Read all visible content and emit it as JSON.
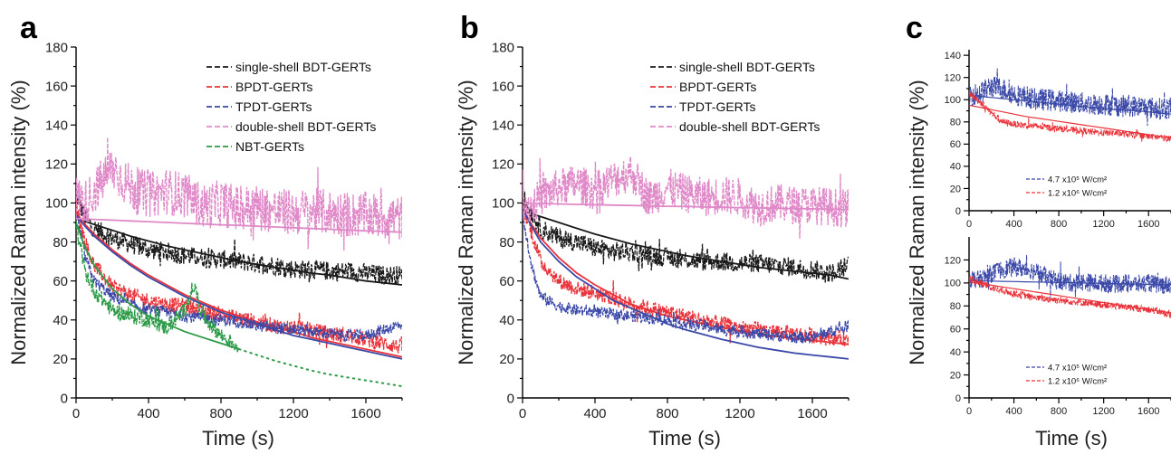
{
  "figure": {
    "ylabel_shared": "Normalized Raman intensity (%)",
    "xlabel_shared": "Time (s)"
  },
  "colors": {
    "black": "#1a1a1a",
    "red": "#e8333a",
    "blue": "#3a48a8",
    "pink": "#e089c8",
    "green": "#2a9a46"
  },
  "chart_data": [
    {
      "panel": "a",
      "type": "line",
      "xlabel": "Time (s)",
      "ylabel": "Normalized Raman intensity (%)",
      "xlim": [
        0,
        1800
      ],
      "ylim": [
        0,
        180
      ],
      "xticks": [
        0,
        400,
        800,
        1200,
        1600
      ],
      "yticks": [
        0,
        20,
        40,
        60,
        80,
        100,
        120,
        140,
        160,
        180
      ],
      "legend_position": "top-right",
      "series": [
        {
          "name": "single-shell BDT-GERTs",
          "color": "black",
          "noise": 5,
          "x": [
            0,
            50,
            100,
            200,
            300,
            400,
            500,
            600,
            700,
            800,
            900,
            1000,
            1100,
            1200,
            1300,
            1400,
            1500,
            1600,
            1700,
            1800
          ],
          "y": [
            105,
            92,
            87,
            82,
            79,
            76,
            75,
            73,
            72,
            71,
            70,
            69,
            68,
            66,
            66,
            65,
            65,
            64,
            63,
            63
          ],
          "fit": [
            92,
            90.5,
            89,
            86,
            83,
            80.5,
            78,
            76,
            74,
            72,
            70,
            68.5,
            67,
            65.5,
            64,
            63,
            61.5,
            60,
            59,
            58
          ]
        },
        {
          "name": "BPDT-GERTs",
          "color": "red",
          "noise": 4,
          "x": [
            0,
            50,
            100,
            200,
            300,
            400,
            500,
            600,
            700,
            800,
            900,
            1000,
            1100,
            1200,
            1300,
            1400,
            1500,
            1600,
            1700,
            1800
          ],
          "y": [
            100,
            80,
            68,
            57,
            53,
            50,
            48,
            47,
            45,
            43,
            41,
            39,
            37,
            36,
            35,
            33,
            32,
            30,
            28,
            26
          ],
          "fit": [
            95,
            89,
            84,
            76,
            69,
            63,
            58,
            53,
            49,
            45,
            42,
            39,
            36,
            34,
            31,
            29,
            27,
            25,
            23,
            21
          ]
        },
        {
          "name": "TPDT-GERTs",
          "color": "blue",
          "noise": 3,
          "x": [
            0,
            50,
            100,
            200,
            300,
            400,
            500,
            600,
            700,
            800,
            900,
            1000,
            1100,
            1200,
            1300,
            1400,
            1500,
            1600,
            1700,
            1800
          ],
          "y": [
            95,
            72,
            60,
            52,
            48,
            45,
            44,
            42,
            41,
            40,
            39,
            37,
            36,
            35,
            34,
            33,
            32,
            32,
            35,
            38
          ],
          "fit": [
            94,
            88,
            83,
            75,
            68,
            62,
            57,
            52,
            48,
            44,
            41,
            38,
            35,
            32,
            30,
            28,
            26,
            24,
            22,
            20
          ]
        },
        {
          "name": "double-shell BDT-GERTs",
          "color": "pink",
          "noise": 12,
          "x": [
            0,
            50,
            100,
            200,
            300,
            400,
            500,
            600,
            700,
            800,
            900,
            1000,
            1100,
            1200,
            1300,
            1400,
            1500,
            1600,
            1700,
            1800
          ],
          "y": [
            103,
            100,
            106,
            118,
            108,
            104,
            106,
            104,
            98,
            100,
            97,
            98,
            96,
            95,
            96,
            95,
            94,
            94,
            93,
            92
          ],
          "fit": [
            92,
            91.8,
            91.6,
            91.2,
            90.8,
            90.4,
            90,
            89.6,
            89.2,
            88.8,
            88.5,
            88.1,
            87.7,
            87.3,
            86.9,
            86.5,
            86.1,
            85.7,
            85.4,
            85
          ]
        },
        {
          "name": "NBT-GERTs",
          "color": "green",
          "noise": 4,
          "x": [
            0,
            50,
            100,
            200,
            300,
            400,
            500,
            600,
            650,
            700,
            800,
            900
          ],
          "y": [
            88,
            65,
            55,
            45,
            42,
            40,
            36,
            45,
            58,
            42,
            32,
            26
          ],
          "fit_x": [
            0,
            50,
            100,
            200,
            300,
            400,
            500,
            600,
            700,
            800,
            900
          ],
          "fit": [
            90,
            77,
            68,
            56,
            48,
            42,
            38,
            34,
            31,
            28,
            25
          ],
          "extrap_x": [
            900,
            1000,
            1100,
            1200,
            1300,
            1400,
            1500,
            1600,
            1700,
            1800
          ],
          "extrap_y": [
            25,
            22,
            19,
            16.5,
            14,
            12,
            10.5,
            9,
            7.5,
            6
          ]
        }
      ]
    },
    {
      "panel": "b",
      "type": "line",
      "xlabel": "Time (s)",
      "ylabel": "Normalized Raman intensity (%)",
      "xlim": [
        0,
        1800
      ],
      "ylim": [
        0,
        180
      ],
      "xticks": [
        0,
        400,
        800,
        1200,
        1600
      ],
      "yticks": [
        0,
        20,
        40,
        60,
        80,
        100,
        120,
        140,
        160,
        180
      ],
      "legend_position": "top-right",
      "series": [
        {
          "name": "single-shell BDT-GERTs",
          "color": "black",
          "noise": 5,
          "x": [
            0,
            50,
            100,
            200,
            300,
            400,
            500,
            600,
            700,
            800,
            900,
            1000,
            1100,
            1200,
            1300,
            1400,
            1500,
            1600,
            1700,
            1800
          ],
          "y": [
            103,
            95,
            87,
            82,
            80,
            77,
            75,
            75,
            73,
            72,
            71,
            70,
            70,
            69,
            69,
            68,
            67,
            66,
            64,
            68
          ],
          "fit": [
            96,
            94.5,
            93,
            90,
            87,
            84,
            81.5,
            79,
            77,
            75,
            73,
            71.5,
            70,
            68.5,
            67,
            66,
            65,
            64,
            63,
            61
          ]
        },
        {
          "name": "BPDT-GERTs",
          "color": "red",
          "noise": 4,
          "x": [
            0,
            50,
            100,
            200,
            300,
            400,
            500,
            600,
            700,
            800,
            900,
            1000,
            1100,
            1200,
            1300,
            1400,
            1500,
            1600,
            1700,
            1800
          ],
          "y": [
            98,
            85,
            70,
            60,
            56,
            54,
            51,
            48,
            46,
            44,
            42,
            40,
            38,
            36,
            35,
            34,
            33,
            32,
            31,
            30
          ],
          "fit": [
            97,
            89,
            82,
            72,
            64,
            58,
            53,
            48,
            45,
            42,
            40,
            38,
            36,
            34.5,
            33,
            31.5,
            30.5,
            29.5,
            28.5,
            27.5
          ]
        },
        {
          "name": "TPDT-GERTs",
          "color": "blue",
          "noise": 3,
          "x": [
            0,
            50,
            100,
            200,
            300,
            400,
            500,
            600,
            700,
            800,
            900,
            1000,
            1100,
            1200,
            1300,
            1400,
            1500,
            1600,
            1700,
            1800
          ],
          "y": [
            95,
            68,
            52,
            47,
            45,
            44,
            43,
            42,
            41,
            40,
            38,
            37,
            35,
            34,
            33,
            32,
            31,
            31,
            34,
            37
          ],
          "fit": [
            97,
            88,
            80,
            70,
            62,
            56,
            50,
            46,
            42,
            38,
            35,
            32.5,
            30,
            28,
            26,
            24.5,
            23,
            22,
            21,
            20
          ]
        },
        {
          "name": "double-shell BDT-GERTs",
          "color": "pink",
          "noise": 10,
          "x": [
            0,
            50,
            100,
            200,
            300,
            400,
            500,
            600,
            700,
            800,
            900,
            1000,
            1100,
            1200,
            1300,
            1400,
            1500,
            1600,
            1700,
            1800
          ],
          "y": [
            102,
            98,
            103,
            108,
            110,
            106,
            112,
            116,
            102,
            108,
            105,
            103,
            104,
            103,
            98,
            100,
            99,
            99,
            98,
            97
          ],
          "fit": [
            100,
            99.8,
            99.7,
            99.5,
            99.3,
            99.1,
            98.9,
            98.7,
            98.5,
            98.3,
            98.2,
            98,
            97.8,
            97.6,
            97.5,
            97.3,
            97.1,
            97,
            96.8,
            96.6
          ]
        }
      ]
    },
    {
      "panel": "c-top",
      "type": "line",
      "xlabel": "",
      "ylabel": "Normalized Raman intensity (%)",
      "xlim": [
        0,
        1800
      ],
      "ylim": [
        0,
        145
      ],
      "xticks": [
        0,
        400,
        800,
        1200,
        1600
      ],
      "yticks": [
        0,
        20,
        40,
        60,
        80,
        100,
        120,
        140
      ],
      "legend_position": "bottom-right",
      "series": [
        {
          "name": "4.7 x10⁵ W/cm²",
          "color": "blue",
          "noise": 10,
          "x": [
            0,
            100,
            200,
            300,
            400,
            500,
            600,
            700,
            800,
            900,
            1000,
            1100,
            1200,
            1300,
            1400,
            1500,
            1600,
            1700,
            1800
          ],
          "y": [
            104,
            106,
            112,
            110,
            105,
            103,
            100,
            100,
            99,
            98,
            97,
            96,
            96,
            95,
            94,
            94,
            93,
            92,
            92
          ],
          "fit": [
            104,
            103,
            102,
            101,
            100,
            99,
            98,
            97,
            96,
            95,
            94,
            93,
            92,
            91,
            90.5,
            90,
            89,
            88,
            87
          ]
        },
        {
          "name": "1.2 x10⁶ W/cm²",
          "color": "red",
          "noise": 3,
          "x": [
            0,
            100,
            200,
            300,
            400,
            500,
            600,
            700,
            800,
            900,
            1000,
            1100,
            1200,
            1300,
            1400,
            1500,
            1600,
            1700,
            1800
          ],
          "y": [
            106,
            98,
            88,
            80,
            78,
            77,
            76,
            75,
            74,
            73,
            72,
            71,
            70,
            70,
            69,
            68,
            67,
            66,
            65
          ],
          "fit": [
            95,
            93,
            91,
            89,
            87,
            85,
            83.5,
            82,
            80.5,
            79,
            77.5,
            76,
            74.5,
            73,
            71.5,
            70,
            68.5,
            67,
            66
          ]
        }
      ]
    },
    {
      "panel": "c-bottom",
      "type": "line",
      "xlabel": "Time (s)",
      "ylabel": "Normalized Raman intensity (%)",
      "xlim": [
        0,
        1800
      ],
      "ylim": [
        0,
        140
      ],
      "xticks": [
        0,
        400,
        800,
        1200,
        1600
      ],
      "yticks": [
        0,
        20,
        40,
        60,
        80,
        100,
        120
      ],
      "legend_position": "bottom-right",
      "series": [
        {
          "name": "4.7 x10⁵ W/cm²",
          "color": "blue",
          "noise": 8,
          "x": [
            0,
            100,
            200,
            300,
            400,
            500,
            600,
            700,
            800,
            900,
            1000,
            1100,
            1200,
            1300,
            1400,
            1500,
            1600,
            1700,
            1800
          ],
          "y": [
            104,
            103,
            108,
            112,
            114,
            112,
            110,
            104,
            102,
            100,
            101,
            100,
            100,
            99,
            100,
            99,
            100,
            98,
            99
          ],
          "fit": [
            102,
            101.8,
            101.6,
            101.4,
            101.2,
            101,
            100.8,
            100.6,
            100.4,
            100.2,
            100,
            99.8,
            99.6,
            99.4,
            99.2,
            99,
            98.8,
            98.6,
            98.4
          ]
        },
        {
          "name": "1.2 x10⁶ W/cm²",
          "color": "red",
          "noise": 3,
          "x": [
            0,
            100,
            200,
            300,
            400,
            500,
            600,
            700,
            800,
            900,
            1000,
            1100,
            1200,
            1300,
            1400,
            1500,
            1600,
            1700,
            1800
          ],
          "y": [
            104,
            100,
            96,
            93,
            91,
            89,
            87,
            86,
            85,
            84,
            83,
            82,
            81,
            80,
            79,
            78,
            77,
            75,
            72
          ],
          "fit": [
            101,
            99.5,
            98,
            96.5,
            95,
            93.5,
            92,
            90.5,
            89,
            87.5,
            86,
            84.5,
            83,
            81.5,
            80,
            78.5,
            77,
            75.5,
            74
          ]
        }
      ]
    }
  ]
}
